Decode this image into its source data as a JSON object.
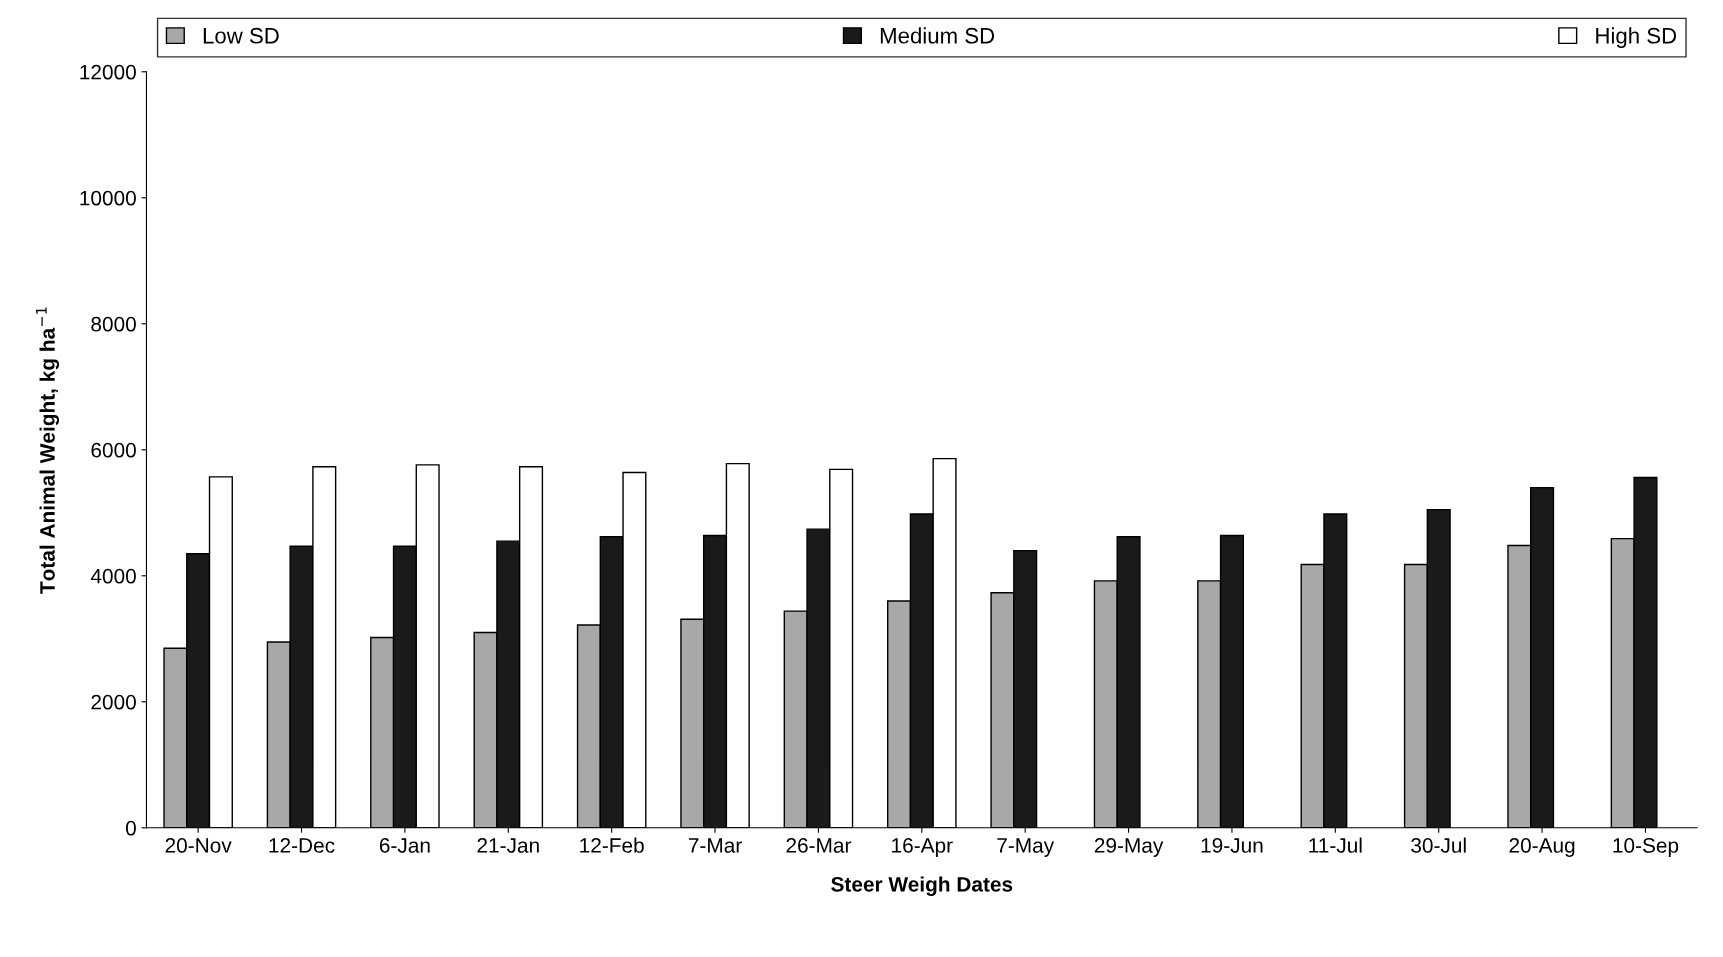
{
  "chart_data": {
    "type": "bar",
    "xlabel": "Steer Weigh Dates",
    "ylabel": "Total Animal Weight, kg ha$^{−1}$",
    "categories": [
      "20-Nov",
      "12-Dec",
      "6-Jan",
      "21-Jan",
      "12-Feb",
      "7-Mar",
      "26-Mar",
      "16-Apr",
      "7-May",
      "29-May",
      "19-Jun",
      "11-Jul",
      "30-Jul",
      "20-Aug",
      "10-Sep"
    ],
    "series": [
      {
        "name": "Low SD",
        "color": "#a8a8a8",
        "values": [
          2850,
          2950,
          3020,
          3100,
          3220,
          3310,
          3440,
          3600,
          3730,
          3920,
          3920,
          4180,
          4180,
          4480,
          4590
        ]
      },
      {
        "name": "Medium SD",
        "color": "#1a1a1a",
        "values": [
          4350,
          4470,
          4470,
          4550,
          4620,
          4640,
          4740,
          4980,
          4400,
          4620,
          4640,
          4980,
          5050,
          5400,
          5560
        ]
      },
      {
        "name": "High SD",
        "color": "#ffffff",
        "values": [
          5570,
          5730,
          5760,
          5730,
          5640,
          5780,
          5690,
          5860,
          null,
          null,
          null,
          null,
          null,
          null,
          null
        ]
      }
    ],
    "ylim": [
      0,
      12000
    ],
    "yticks": [
      0,
      2000,
      4000,
      6000,
      8000,
      10000,
      12000
    ],
    "legend": "top",
    "grid": false
  }
}
